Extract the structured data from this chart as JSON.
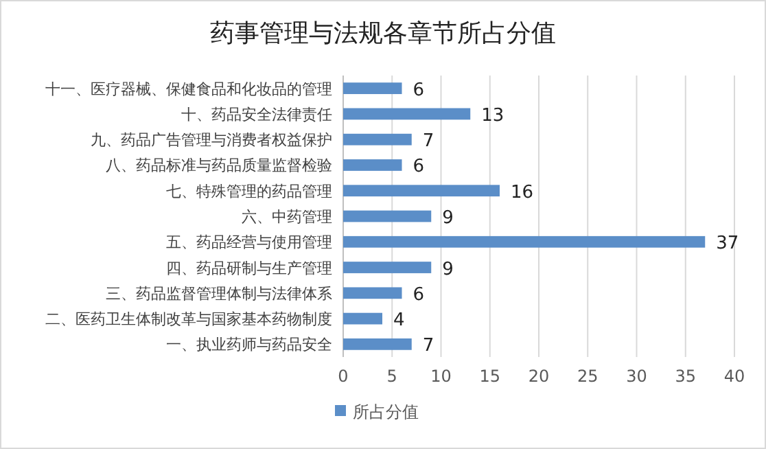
{
  "chart_data": {
    "type": "bar",
    "orientation": "horizontal",
    "title": "药事管理与法规各章节所占分值",
    "categories": [
      "十一、医疗器械、保健食品和化妆品的管理",
      "十、药品安全法律责任",
      "九、药品广告管理与消费者权益保护",
      "八、药品标准与药品质量监督检验",
      "七、特殊管理的药品管理",
      "六、中药管理",
      "五、药品经营与使用管理",
      "四、药品研制与生产管理",
      "三、药品监督管理体制与法律体系",
      "二、医药卫生体制改革与国家基本药物制度",
      "一、执业药师与药品安全"
    ],
    "series": [
      {
        "name": "所占分值",
        "color": "#5b8ec8",
        "values": [
          6,
          13,
          7,
          6,
          16,
          9,
          37,
          9,
          6,
          4,
          7
        ]
      }
    ],
    "xlim": [
      0,
      40
    ],
    "xticks": [
      0,
      5,
      10,
      15,
      20,
      25,
      30,
      35,
      40
    ],
    "grid": "x",
    "legend": "bottom",
    "data_labels": true
  }
}
